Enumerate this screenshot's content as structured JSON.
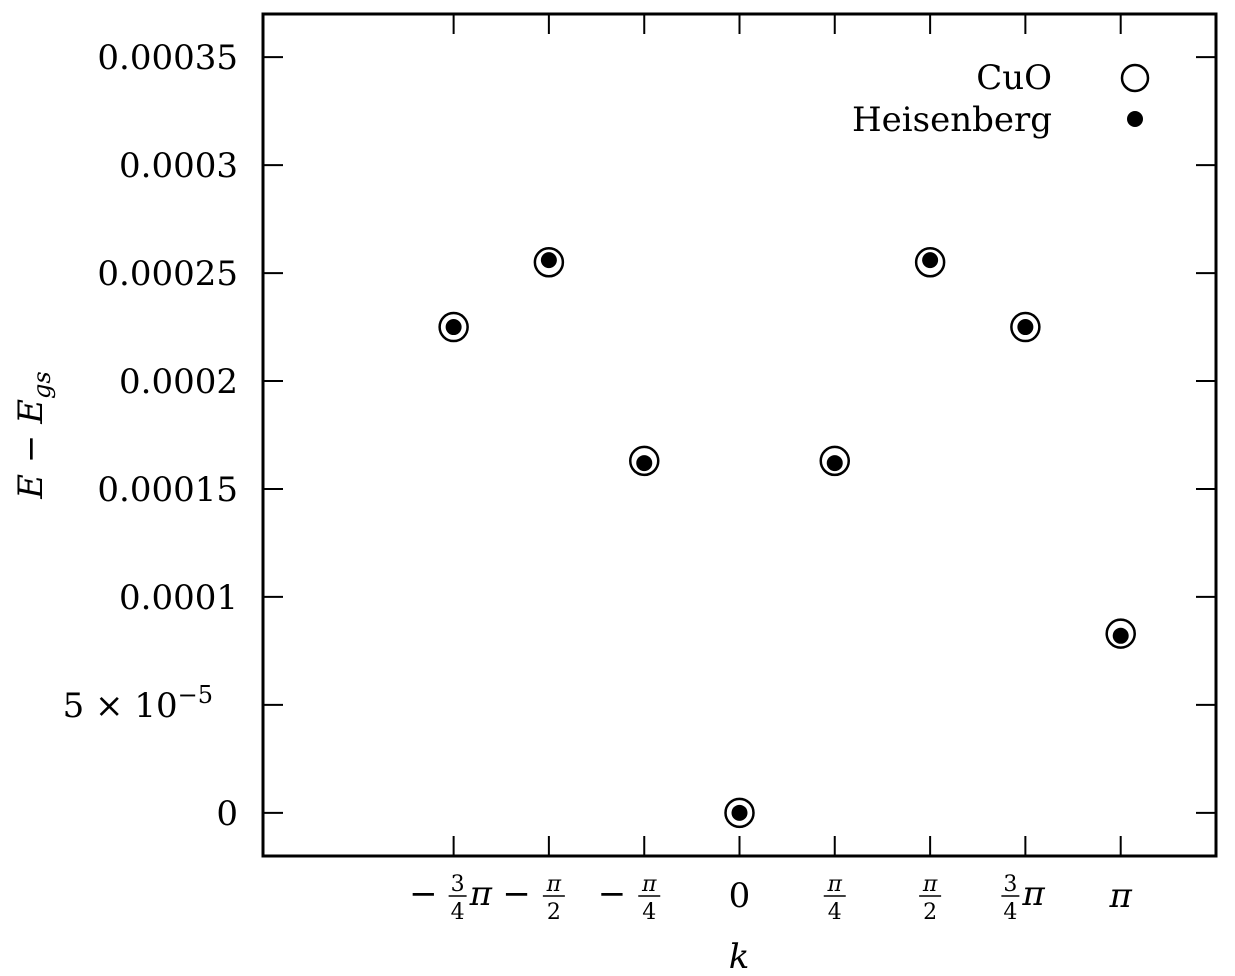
{
  "chart_data": {
    "type": "scatter",
    "xlabel": "k",
    "ylabel": {
      "main": "E − E",
      "sub": "gs"
    },
    "xlim": [
      -3.927,
      3.927
    ],
    "ylim": [
      -2e-05,
      0.00037
    ],
    "x_ticks": [
      {
        "value": -2.356,
        "kind": "frac_pi",
        "num": "3",
        "den": "4",
        "sign": "−",
        "pi": "π"
      },
      {
        "value": -1.571,
        "kind": "pi_over",
        "num": "π",
        "den": "2",
        "sign": "−"
      },
      {
        "value": -0.785,
        "kind": "pi_over",
        "num": "π",
        "den": "4",
        "sign": "−"
      },
      {
        "value": 0,
        "kind": "plain",
        "label": "0"
      },
      {
        "value": 0.785,
        "kind": "pi_over",
        "num": "π",
        "den": "4",
        "sign": ""
      },
      {
        "value": 1.571,
        "kind": "pi_over",
        "num": "π",
        "den": "2",
        "sign": ""
      },
      {
        "value": 2.356,
        "kind": "frac_pi",
        "num": "3",
        "den": "4",
        "sign": "",
        "pi": "π"
      },
      {
        "value": 3.1416,
        "kind": "plain",
        "label": "π"
      }
    ],
    "y_ticks": [
      {
        "value": 0,
        "label": "0"
      },
      {
        "value": 5e-05,
        "label": "5 × 10",
        "sup": "−5"
      },
      {
        "value": 0.0001,
        "label": "0.0001"
      },
      {
        "value": 0.00015,
        "label": "0.00015"
      },
      {
        "value": 0.0002,
        "label": "0.0002"
      },
      {
        "value": 0.00025,
        "label": "0.00025"
      },
      {
        "value": 0.0003,
        "label": "0.0003"
      },
      {
        "value": 0.00035,
        "label": "0.00035"
      }
    ],
    "series": [
      {
        "name": "CuO",
        "marker": "open-circle",
        "x": [
          -2.356,
          -1.571,
          -0.785,
          0,
          0.785,
          1.571,
          2.356,
          3.1416
        ],
        "y": [
          0.000225,
          0.000255,
          0.000163,
          0,
          0.000163,
          0.000255,
          0.000225,
          8.3e-05
        ]
      },
      {
        "name": "Heisenberg",
        "marker": "filled-circle",
        "x": [
          -2.356,
          -1.571,
          -0.785,
          0,
          0.785,
          1.571,
          2.356,
          3.1416
        ],
        "y": [
          0.000225,
          0.000256,
          0.000162,
          0,
          0.000162,
          0.000256,
          0.000225,
          8.2e-05
        ]
      }
    ],
    "legend": "top-right",
    "grid": false,
    "colors": {
      "marker": "#000000",
      "open_fill": "#ffffff"
    }
  }
}
